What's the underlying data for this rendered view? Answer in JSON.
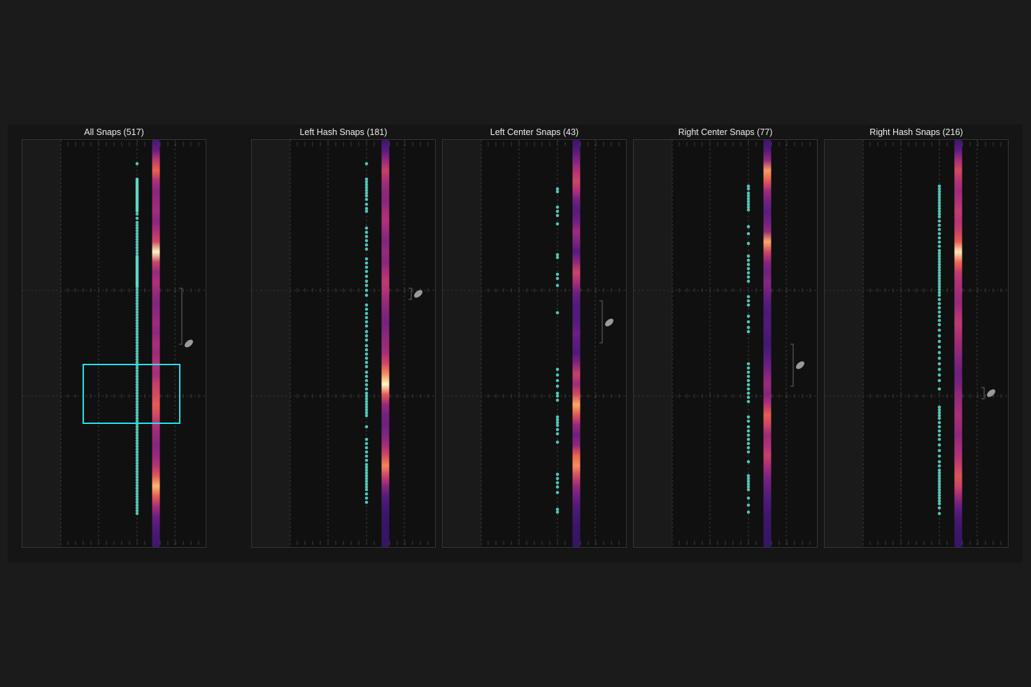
{
  "colors": {
    "page_background": "#1b1b1b",
    "panel_background": "#151515",
    "field_background": "#101010",
    "dot": "#5de0cf",
    "selection": "#22e2ee",
    "football": "#9a9a9a"
  },
  "icons": {
    "football": "football-icon",
    "bracket": "distance-bracket"
  },
  "facets": [
    {
      "title": "All Snaps (517)",
      "dots": [
        234,
        256,
        258,
        260,
        262,
        264,
        266,
        268,
        270,
        272,
        274,
        276,
        278,
        280,
        282,
        284,
        286,
        288,
        290,
        292,
        294,
        296,
        298,
        300,
        302,
        306,
        312,
        318,
        322,
        326,
        330,
        334,
        338,
        342,
        346,
        350,
        354,
        358,
        362,
        366,
        368,
        370,
        372,
        374,
        376,
        378,
        380,
        382,
        384,
        386,
        388,
        390,
        392,
        394,
        396,
        398,
        400,
        402,
        404,
        406,
        408,
        410,
        414,
        418,
        422,
        426,
        430,
        434,
        438,
        442,
        446,
        450,
        454,
        458,
        462,
        466,
        470,
        474,
        478,
        482,
        486,
        490,
        494,
        498,
        502,
        506,
        510,
        514,
        518,
        522,
        526,
        530,
        534,
        538,
        542,
        546,
        550,
        554,
        558,
        562,
        566,
        570,
        574,
        578,
        582,
        586,
        590,
        594,
        598,
        602,
        606,
        610,
        614,
        618,
        622,
        626,
        630,
        634,
        638,
        642,
        646,
        650,
        654,
        658,
        662,
        666,
        670,
        674,
        678,
        682,
        686,
        690,
        694,
        698,
        702,
        706,
        710,
        714,
        718,
        722,
        726,
        730,
        734
      ],
      "heat": [
        0.15,
        0.28,
        0.55,
        0.72,
        0.5,
        0.38,
        0.42,
        0.46,
        0.38,
        0.5,
        0.62,
        1.0,
        0.6,
        0.42,
        0.5,
        0.42,
        0.36,
        0.4,
        0.44,
        0.4,
        0.48,
        0.44,
        0.52,
        0.46,
        0.58,
        0.62,
        0.7,
        0.62,
        0.5,
        0.42,
        0.38,
        0.42,
        0.52,
        0.68,
        0.9,
        0.7,
        0.48,
        0.3,
        0.2,
        0.15,
        0.12
      ]
    },
    {
      "title": "Left Hash Snaps (181)",
      "dots": [
        234,
        256,
        260,
        264,
        268,
        272,
        276,
        280,
        285,
        292,
        298,
        302,
        326,
        332,
        338,
        344,
        350,
        356,
        370,
        376,
        382,
        388,
        395,
        402,
        408,
        415,
        422,
        436,
        442,
        448,
        454,
        460,
        466,
        474,
        480,
        486,
        494,
        500,
        506,
        512,
        518,
        524,
        532,
        538,
        544,
        550,
        556,
        562,
        566,
        570,
        574,
        578,
        582,
        586,
        590,
        594,
        610,
        628,
        634,
        640,
        646,
        652,
        658,
        664,
        668,
        672,
        676,
        680,
        684,
        688,
        692,
        696,
        700,
        706,
        712,
        718
      ],
      "heat": [
        0.12,
        0.22,
        0.42,
        0.58,
        0.48,
        0.4,
        0.38,
        0.46,
        0.5,
        0.42,
        0.36,
        0.42,
        0.38,
        0.48,
        0.55,
        0.5,
        0.42,
        0.36,
        0.32,
        0.38,
        0.42,
        0.48,
        0.62,
        0.82,
        1.0,
        0.7,
        0.42,
        0.32,
        0.3,
        0.36,
        0.46,
        0.62,
        0.8,
        0.6,
        0.38,
        0.22,
        0.14,
        0.1,
        0.08,
        0.08,
        0.08
      ]
    },
    {
      "title": "Left Center Snaps (43)",
      "dots": [
        270,
        274,
        296,
        302,
        308,
        320,
        364,
        368,
        392,
        398,
        408,
        447,
        528,
        536,
        544,
        552,
        562,
        566,
        572,
        596,
        600,
        604,
        608,
        614,
        620,
        632,
        678,
        684,
        690,
        696,
        704,
        728,
        732
      ],
      "heat": [
        0.1,
        0.2,
        0.35,
        0.5,
        0.6,
        0.5,
        0.3,
        0.22,
        0.3,
        0.45,
        0.35,
        0.22,
        0.4,
        0.6,
        0.48,
        0.3,
        0.22,
        0.2,
        0.22,
        0.3,
        0.24,
        0.2,
        0.38,
        0.58,
        0.45,
        0.62,
        0.88,
        0.68,
        0.42,
        0.3,
        0.4,
        0.72,
        0.82,
        0.62,
        0.42,
        0.3,
        0.2,
        0.14,
        0.1,
        0.08,
        0.08
      ]
    },
    {
      "title": "Right Center Snaps (77)",
      "dots": [
        266,
        270,
        276,
        280,
        284,
        288,
        292,
        296,
        300,
        324,
        334,
        348,
        366,
        372,
        378,
        384,
        390,
        396,
        402,
        424,
        430,
        436,
        452,
        460,
        468,
        474,
        520,
        526,
        532,
        538,
        544,
        550,
        556,
        562,
        568,
        574,
        596,
        602,
        610,
        616,
        622,
        628,
        634,
        640,
        646,
        660,
        680,
        684,
        688,
        692,
        696,
        700,
        712,
        722,
        732
      ],
      "heat": [
        0.1,
        0.2,
        0.42,
        0.85,
        0.7,
        0.45,
        0.32,
        0.25,
        0.3,
        0.42,
        0.88,
        0.6,
        0.38,
        0.3,
        0.38,
        0.3,
        0.22,
        0.18,
        0.2,
        0.18,
        0.15,
        0.2,
        0.28,
        0.36,
        0.44,
        0.36,
        0.52,
        0.7,
        0.6,
        0.44,
        0.5,
        0.58,
        0.48,
        0.36,
        0.28,
        0.22,
        0.16,
        0.12,
        0.1,
        0.08,
        0.08
      ]
    },
    {
      "title": "Right Hash Snaps (216)",
      "dots": [
        266,
        270,
        274,
        278,
        282,
        286,
        290,
        294,
        298,
        302,
        306,
        310,
        316,
        322,
        328,
        334,
        340,
        346,
        352,
        358,
        362,
        366,
        370,
        374,
        378,
        382,
        386,
        390,
        394,
        398,
        402,
        406,
        410,
        414,
        418,
        422,
        428,
        434,
        440,
        446,
        452,
        458,
        464,
        472,
        480,
        488,
        496,
        504,
        512,
        520,
        528,
        536,
        544,
        556,
        582,
        586,
        590,
        594,
        598,
        604,
        610,
        616,
        622,
        628,
        636,
        644,
        652,
        660,
        666,
        672,
        676,
        680,
        684,
        688,
        692,
        696,
        700,
        704,
        708,
        712,
        716,
        720,
        726,
        734
      ],
      "heat": [
        0.12,
        0.25,
        0.48,
        0.62,
        0.52,
        0.45,
        0.5,
        0.56,
        0.52,
        0.58,
        0.7,
        0.98,
        0.74,
        0.56,
        0.5,
        0.46,
        0.42,
        0.5,
        0.55,
        0.5,
        0.44,
        0.4,
        0.34,
        0.3,
        0.34,
        0.4,
        0.44,
        0.48,
        0.44,
        0.4,
        0.46,
        0.5,
        0.58,
        0.66,
        0.6,
        0.44,
        0.28,
        0.18,
        0.12,
        0.1,
        0.08
      ]
    }
  ]
}
